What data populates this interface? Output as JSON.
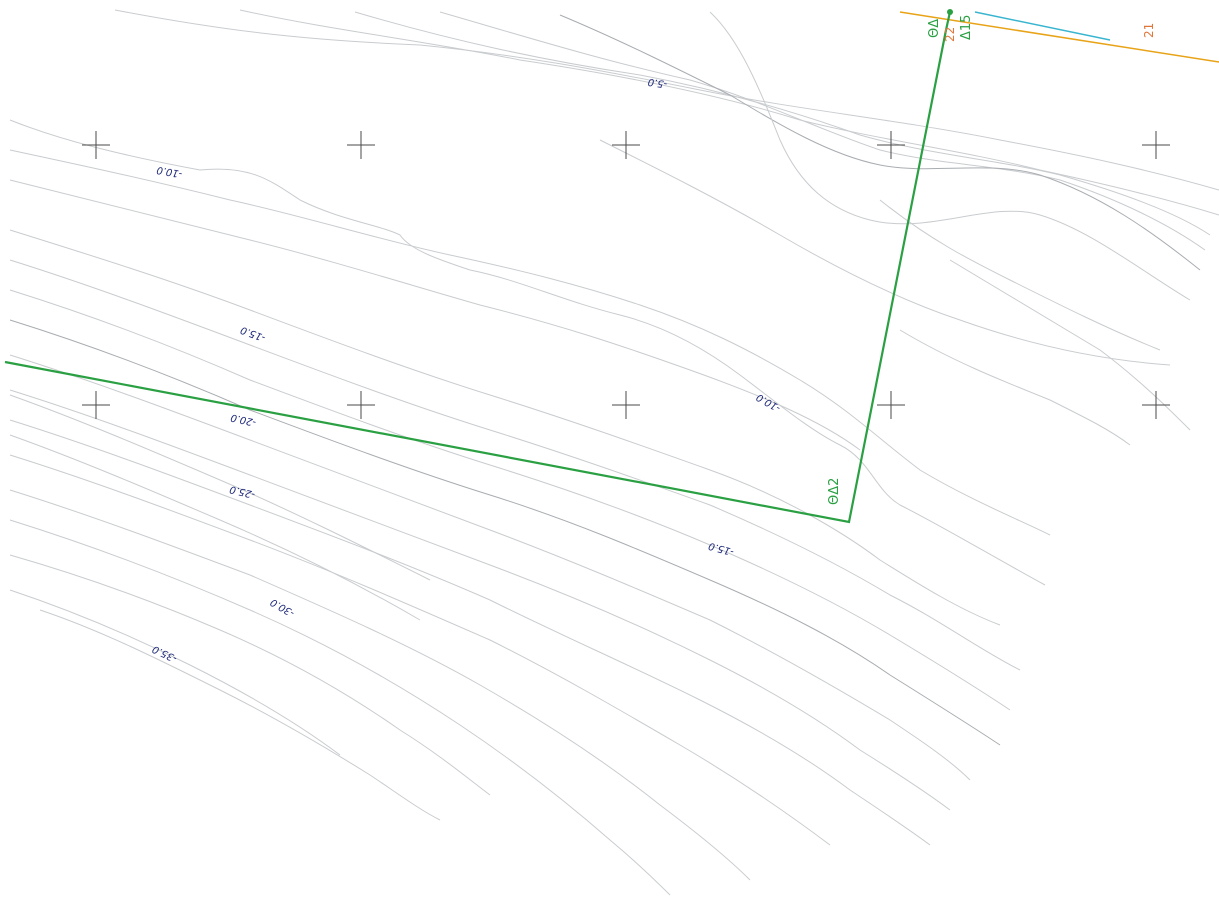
{
  "map": {
    "contour_labels": [
      {
        "text": "-5.0"
      },
      {
        "text": "-10.0"
      },
      {
        "text": "-10.0"
      },
      {
        "text": "-15.0"
      },
      {
        "text": "-15.0"
      },
      {
        "text": "-20.0"
      },
      {
        "text": "-25.0"
      },
      {
        "text": "-30.0"
      },
      {
        "text": "-35.0"
      }
    ],
    "node_labels": {
      "node_a": "ΘΔ2",
      "node_b": "ΘΔ",
      "node_c": "Δ15"
    },
    "parcel_labels": {
      "parcel_a": "22",
      "parcel_b": "21"
    },
    "colors": {
      "boundary": "#2aa043",
      "contour": "#c9cccf",
      "elevation_text": "#1f2a7a",
      "parcel_text": "#e0763a",
      "road_orange": "#e8a317",
      "road_cyan": "#3ab5d0",
      "grid_cross": "#4a4a4a"
    }
  }
}
